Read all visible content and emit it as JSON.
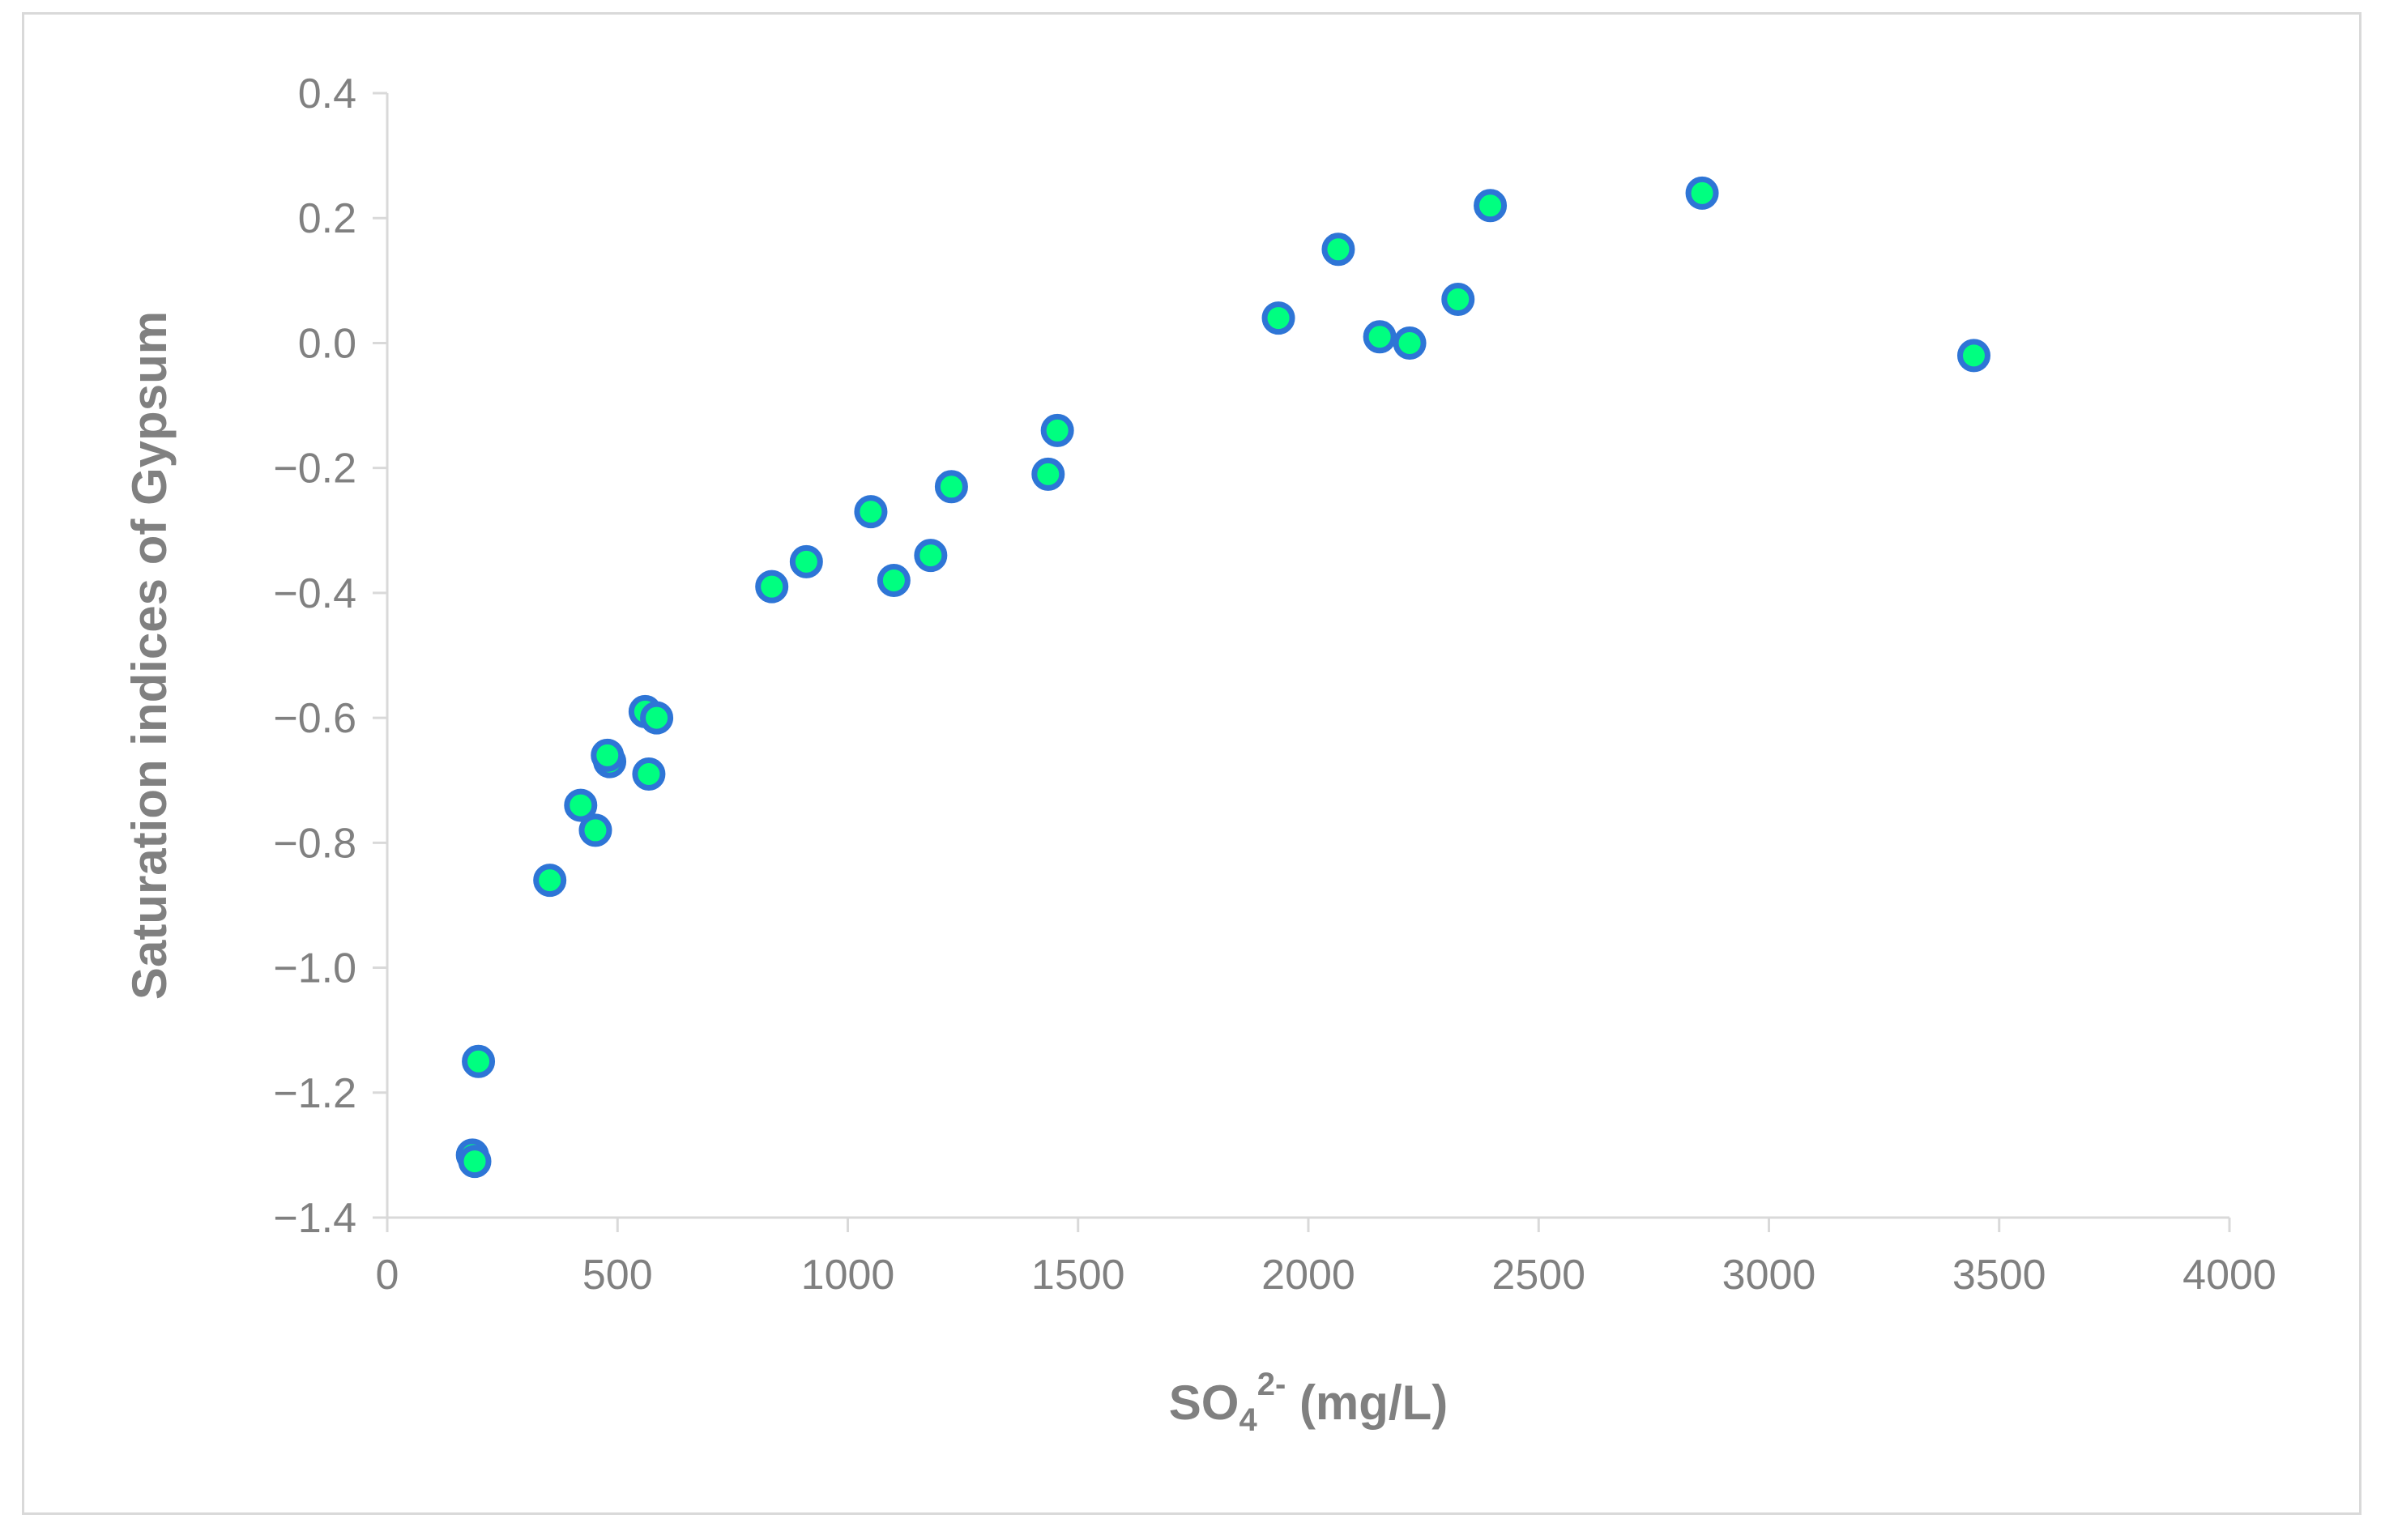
{
  "chart_data": {
    "type": "scatter",
    "title": "",
    "xlabel": {
      "base": "SO",
      "subscript": "4",
      "superscript": "2-",
      "rest": " (mg/L)"
    },
    "ylabel": "Saturation indices of Gypsum",
    "xlim": [
      0,
      4000
    ],
    "ylim": [
      -1.4,
      0.4
    ],
    "x_ticks": [
      "0",
      "500",
      "1000",
      "1500",
      "2000",
      "2500",
      "3000",
      "3500",
      "4000"
    ],
    "y_ticks": [
      "0.4",
      "0.2",
      "0.0",
      "−0.2",
      "−0.4",
      "−0.6",
      "−0.8",
      "−1.0",
      "−1.2",
      "−1.4"
    ],
    "x_tick_values": [
      0,
      500,
      1000,
      1500,
      2000,
      2500,
      3000,
      3500,
      4000
    ],
    "y_tick_values": [
      0.4,
      0.2,
      0.0,
      -0.2,
      -0.4,
      -0.6,
      -0.8,
      -1.0,
      -1.2,
      -1.4
    ],
    "grid": false,
    "legend": "none",
    "marker_fill": "#00ff80",
    "marker_edge": "#2e75d6",
    "series": [
      {
        "points": [
          {
            "x": 185,
            "y": -1.3
          },
          {
            "x": 190,
            "y": -1.31
          },
          {
            "x": 198,
            "y": -1.15
          },
          {
            "x": 353,
            "y": -0.86
          },
          {
            "x": 420,
            "y": -0.74
          },
          {
            "x": 452,
            "y": -0.78
          },
          {
            "x": 483,
            "y": -0.67
          },
          {
            "x": 478,
            "y": -0.66
          },
          {
            "x": 560,
            "y": -0.59
          },
          {
            "x": 585,
            "y": -0.6
          },
          {
            "x": 568,
            "y": -0.69
          },
          {
            "x": 835,
            "y": -0.39
          },
          {
            "x": 910,
            "y": -0.35
          },
          {
            "x": 1050,
            "y": -0.27
          },
          {
            "x": 1100,
            "y": -0.38
          },
          {
            "x": 1180,
            "y": -0.34
          },
          {
            "x": 1225,
            "y": -0.23
          },
          {
            "x": 1435,
            "y": -0.21
          },
          {
            "x": 1455,
            "y": -0.14
          },
          {
            "x": 1935,
            "y": 0.04
          },
          {
            "x": 2065,
            "y": 0.15
          },
          {
            "x": 2155,
            "y": 0.01
          },
          {
            "x": 2220,
            "y": 0.0
          },
          {
            "x": 2325,
            "y": 0.07
          },
          {
            "x": 2395,
            "y": 0.22
          },
          {
            "x": 2855,
            "y": 0.24
          },
          {
            "x": 3445,
            "y": -0.02
          }
        ]
      }
    ]
  }
}
